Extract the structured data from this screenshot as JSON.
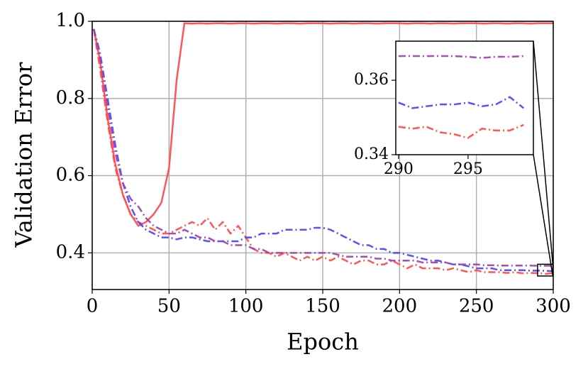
{
  "chart_data": [
    {
      "type": "line",
      "xlabel": "Epoch",
      "ylabel": "Validation Error",
      "x": [
        1,
        5,
        10,
        15,
        20,
        25,
        30,
        35,
        40,
        45,
        50,
        55,
        60,
        65,
        70,
        75,
        80,
        85,
        90,
        95,
        100,
        105,
        110,
        115,
        120,
        125,
        130,
        135,
        140,
        145,
        150,
        155,
        160,
        165,
        170,
        175,
        180,
        185,
        190,
        195,
        200,
        205,
        210,
        215,
        220,
        225,
        230,
        235,
        240,
        245,
        250,
        255,
        260,
        265,
        270,
        275,
        280,
        285,
        290,
        295,
        300
      ],
      "xlim": [
        0,
        300
      ],
      "xticks": [
        0,
        50,
        100,
        150,
        200,
        250,
        300
      ],
      "ylim": [
        0.305,
        1.0
      ],
      "yticks": [
        0.4,
        0.6,
        0.8,
        {
          "value": 1,
          "label": "1.0"
        }
      ],
      "grid": true,
      "series": [
        {
          "color": "#ff4d4d",
          "linestyle": "solid",
          "values": [
            0.98,
            0.9,
            0.75,
            0.63,
            0.55,
            0.5,
            0.47,
            0.48,
            0.5,
            0.53,
            0.62,
            0.85,
            0.995,
            0.994,
            0.995,
            0.994,
            0.995,
            0.995,
            0.994,
            0.995,
            0.995,
            0.994,
            0.995,
            0.995,
            0.994,
            0.995,
            0.995,
            0.994,
            0.995,
            0.995,
            0.995,
            0.994,
            0.995,
            0.995,
            0.994,
            0.995,
            0.995,
            0.994,
            0.995,
            0.995,
            0.995,
            0.994,
            0.995,
            0.995,
            0.994,
            0.995,
            0.995,
            0.994,
            0.995,
            0.995,
            0.995,
            0.994,
            0.995,
            0.995,
            0.994,
            0.995,
            0.995,
            0.994,
            0.995,
            0.995,
            0.995
          ]
        },
        {
          "color": "#ff4d4d",
          "linestyle": "dashdot",
          "values": [
            0.98,
            0.88,
            0.74,
            0.62,
            0.55,
            0.5,
            0.48,
            0.47,
            0.46,
            0.45,
            0.45,
            0.46,
            0.47,
            0.48,
            0.47,
            0.49,
            0.46,
            0.48,
            0.45,
            0.47,
            0.44,
            0.41,
            0.4,
            0.4,
            0.39,
            0.4,
            0.39,
            0.38,
            0.39,
            0.38,
            0.39,
            0.38,
            0.39,
            0.38,
            0.37,
            0.38,
            0.38,
            0.37,
            0.37,
            0.38,
            0.37,
            0.36,
            0.37,
            0.36,
            0.36,
            0.36,
            0.355,
            0.36,
            0.355,
            0.35,
            0.355,
            0.35,
            0.35,
            0.35,
            0.348,
            0.35,
            0.347,
            0.348,
            0.3475,
            0.3455,
            0.348
          ]
        },
        {
          "color": "#4a4aff",
          "linestyle": "dashdot",
          "values": [
            0.98,
            0.92,
            0.8,
            0.68,
            0.58,
            0.52,
            0.48,
            0.46,
            0.45,
            0.44,
            0.44,
            0.435,
            0.44,
            0.44,
            0.435,
            0.43,
            0.43,
            0.43,
            0.43,
            0.43,
            0.44,
            0.44,
            0.45,
            0.45,
            0.45,
            0.46,
            0.46,
            0.46,
            0.46,
            0.465,
            0.465,
            0.46,
            0.45,
            0.44,
            0.43,
            0.42,
            0.42,
            0.41,
            0.41,
            0.4,
            0.4,
            0.395,
            0.39,
            0.385,
            0.38,
            0.38,
            0.375,
            0.37,
            0.37,
            0.365,
            0.36,
            0.36,
            0.36,
            0.355,
            0.355,
            0.355,
            0.355,
            0.354,
            0.354,
            0.3535,
            0.3525
          ]
        },
        {
          "color": "#a044b0",
          "linestyle": "dashdot",
          "values": [
            0.98,
            0.91,
            0.78,
            0.66,
            0.58,
            0.54,
            0.52,
            0.49,
            0.47,
            0.46,
            0.45,
            0.45,
            0.46,
            0.45,
            0.44,
            0.44,
            0.43,
            0.43,
            0.42,
            0.42,
            0.42,
            0.41,
            0.41,
            0.4,
            0.4,
            0.4,
            0.4,
            0.4,
            0.4,
            0.4,
            0.4,
            0.4,
            0.395,
            0.39,
            0.39,
            0.39,
            0.39,
            0.385,
            0.385,
            0.38,
            0.38,
            0.38,
            0.38,
            0.375,
            0.375,
            0.375,
            0.375,
            0.37,
            0.37,
            0.37,
            0.37,
            0.368,
            0.368,
            0.367,
            0.367,
            0.367,
            0.367,
            0.367,
            0.3665,
            0.3665,
            0.3665
          ]
        }
      ]
    },
    {
      "type": "line",
      "x": [
        290,
        291,
        292,
        293,
        294,
        295,
        296,
        297,
        298,
        299
      ],
      "xlim": [
        289.8,
        299.7
      ],
      "xticks": [
        290,
        295
      ],
      "ylim": [
        0.34,
        0.3705
      ],
      "yticks": [
        0.34,
        0.36
      ],
      "grid": false,
      "series": [
        {
          "color": "#ff4d4d",
          "linestyle": "dashdot",
          "values": [
            0.3475,
            0.347,
            0.3475,
            0.346,
            0.3455,
            0.3445,
            0.347,
            0.3465,
            0.3465,
            0.348
          ]
        },
        {
          "color": "#4a4aff",
          "linestyle": "dashdot",
          "values": [
            0.354,
            0.3525,
            0.353,
            0.3535,
            0.3535,
            0.354,
            0.353,
            0.3535,
            0.3555,
            0.3525
          ]
        },
        {
          "color": "#a044b0",
          "linestyle": "dashdot",
          "values": [
            0.3665,
            0.3665,
            0.3665,
            0.3665,
            0.3665,
            0.3663,
            0.366,
            0.3663,
            0.3663,
            0.3665
          ]
        }
      ]
    }
  ]
}
